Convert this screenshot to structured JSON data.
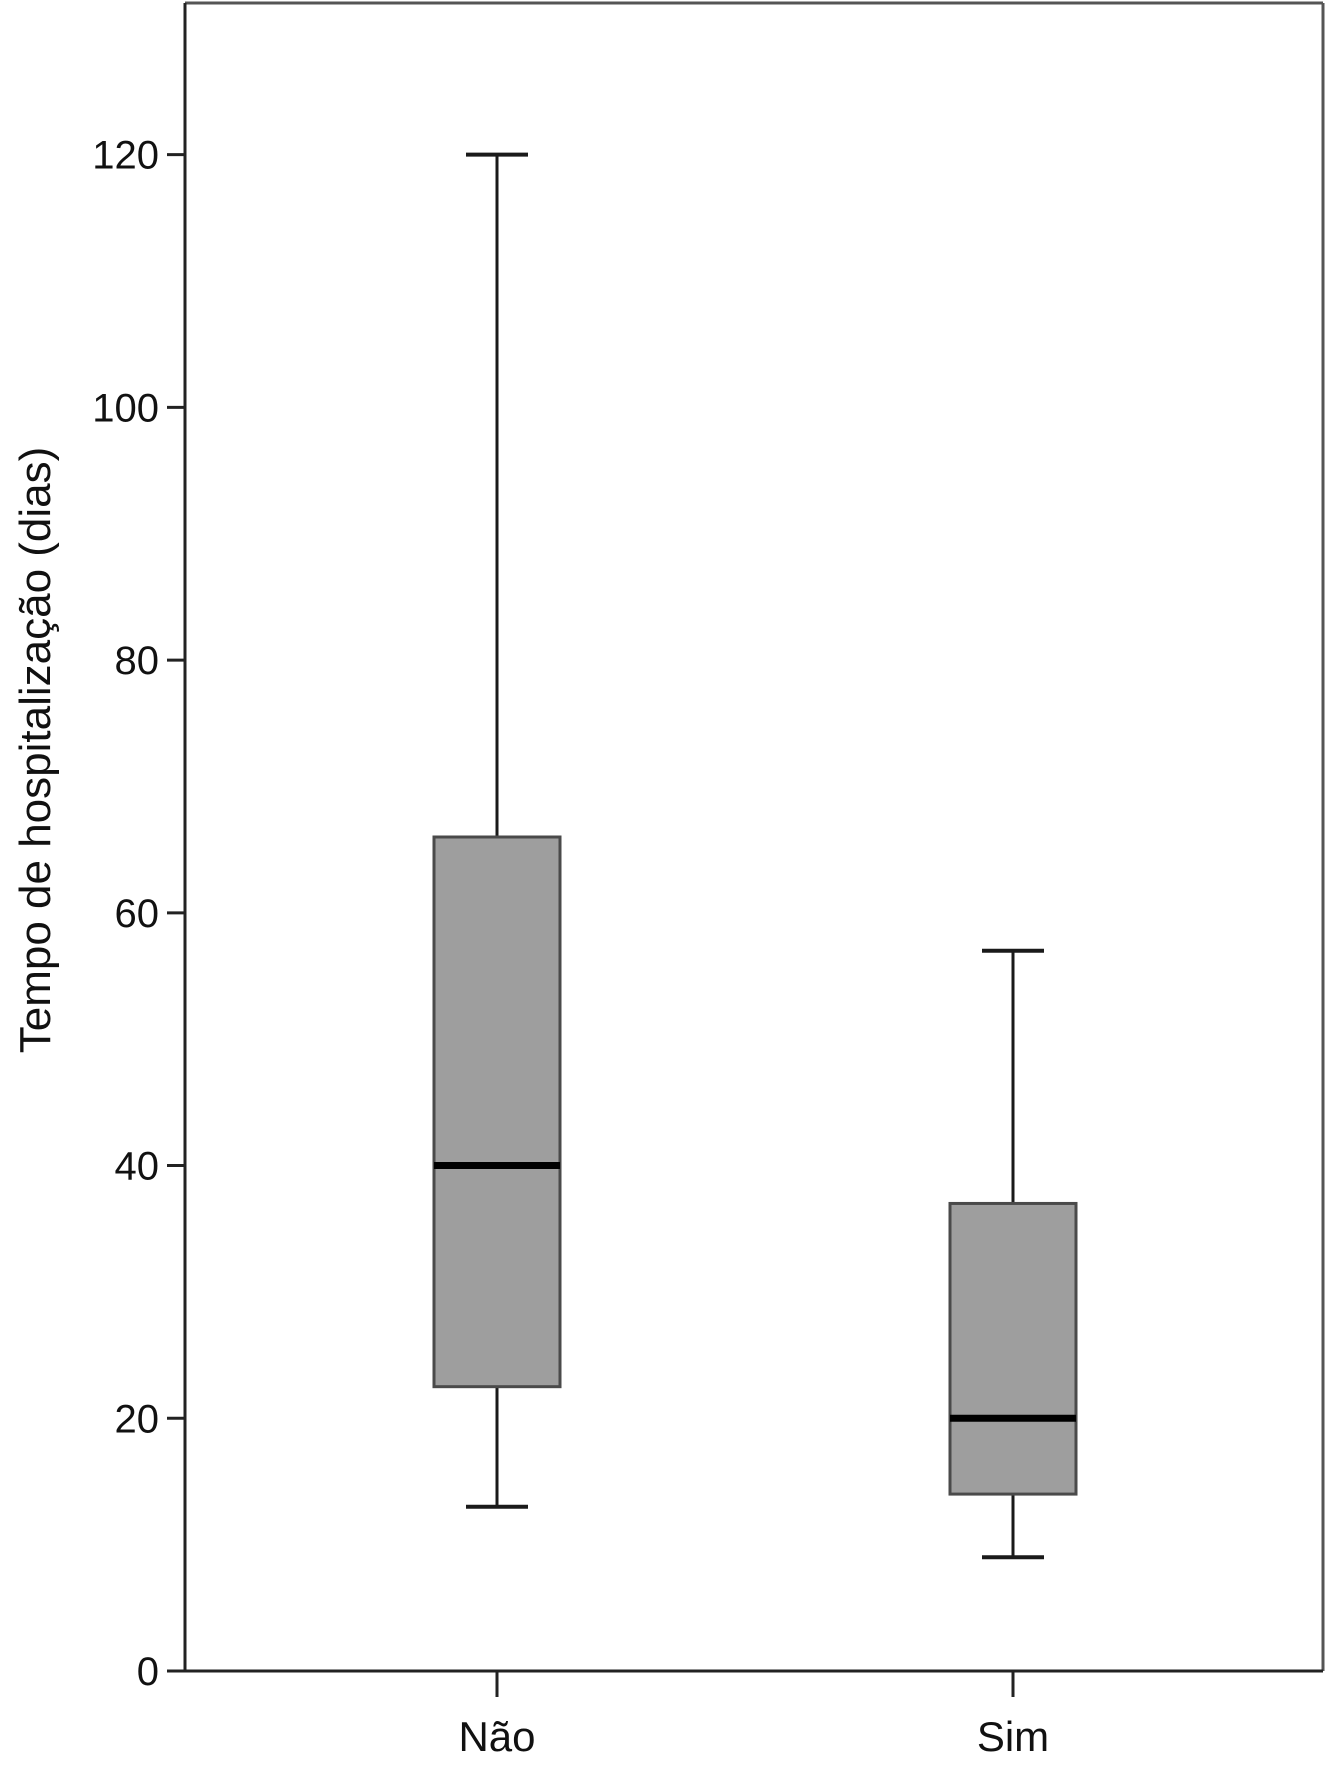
{
  "chart_data": {
    "type": "boxplot",
    "title": "",
    "xlabel": "",
    "ylabel": "Tempo de hospitalização (dias)",
    "ylim": [
      0,
      132
    ],
    "yticks": [
      0,
      20,
      40,
      60,
      80,
      100,
      120
    ],
    "grid": false,
    "legend": "none",
    "categories": [
      "Não",
      "Sim"
    ],
    "boxes": [
      {
        "category": "Não",
        "whisker_low": 13,
        "q1": 22.5,
        "median": 40,
        "q3": 66,
        "whisker_high": 120
      },
      {
        "category": "Sim",
        "whisker_low": 9,
        "q1": 14,
        "median": 20,
        "q3": 37,
        "whisker_high": 57
      }
    ],
    "colors": {
      "box_fill": "#9e9e9e",
      "box_stroke": "#4a4a4a",
      "median": "#000000",
      "whisker": "#1a1a1a",
      "axis": "#222222",
      "frame": "#555555"
    }
  }
}
